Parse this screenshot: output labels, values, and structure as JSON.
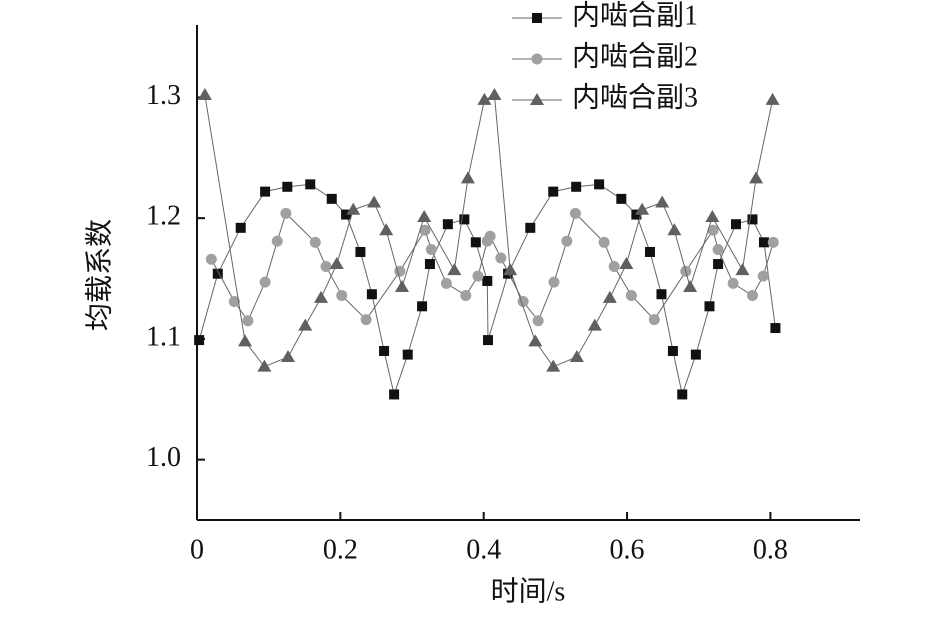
{
  "chart_data": {
    "type": "line",
    "x_label": "时间/s",
    "y_label": "均载系数",
    "xlim": [
      0,
      0.925
    ],
    "ylim": [
      0.95,
      1.36
    ],
    "xticks": [
      0,
      0.2,
      0.4,
      0.6,
      0.8
    ],
    "yticks": [
      {
        "value": 1,
        "label": "1.0"
      },
      1.1,
      1.2,
      1.3
    ],
    "legend": "top-right",
    "series": [
      {
        "name": "内啮合副1",
        "color": "#111111",
        "marker": "square",
        "x": [
          0.003,
          0.029,
          0.061,
          0.095,
          0.126,
          0.158,
          0.188,
          0.208,
          0.228,
          0.244,
          0.261,
          0.275,
          0.294,
          0.314,
          0.325,
          0.35,
          0.373,
          0.389,
          0.405,
          0.406,
          0.434,
          0.465,
          0.497,
          0.529,
          0.561,
          0.592,
          0.613,
          0.632,
          0.648,
          0.664,
          0.677,
          0.696,
          0.715,
          0.727,
          0.752,
          0.775,
          0.791,
          0.807
        ],
        "values": [
          1.099,
          1.154,
          1.192,
          1.222,
          1.226,
          1.228,
          1.216,
          1.203,
          1.172,
          1.137,
          1.09,
          1.054,
          1.087,
          1.127,
          1.162,
          1.195,
          1.199,
          1.18,
          1.148,
          1.099,
          1.154,
          1.192,
          1.222,
          1.226,
          1.228,
          1.216,
          1.203,
          1.172,
          1.137,
          1.09,
          1.054,
          1.087,
          1.127,
          1.162,
          1.195,
          1.199,
          1.18,
          1.109
        ]
      },
      {
        "name": "内啮合副2",
        "color": "#a0a0a0",
        "marker": "circle",
        "x": [
          0.02,
          0.052,
          0.071,
          0.095,
          0.112,
          0.124,
          0.165,
          0.18,
          0.202,
          0.236,
          0.283,
          0.318,
          0.327,
          0.348,
          0.375,
          0.392,
          0.405,
          0.409,
          0.424,
          0.455,
          0.476,
          0.498,
          0.516,
          0.528,
          0.568,
          0.582,
          0.606,
          0.638,
          0.682,
          0.72,
          0.727,
          0.748,
          0.775,
          0.79,
          0.804
        ],
        "values": [
          1.166,
          1.131,
          1.115,
          1.147,
          1.181,
          1.204,
          1.18,
          1.16,
          1.136,
          1.116,
          1.156,
          1.19,
          1.174,
          1.146,
          1.136,
          1.152,
          1.181,
          1.185,
          1.167,
          1.131,
          1.115,
          1.147,
          1.181,
          1.204,
          1.18,
          1.16,
          1.136,
          1.116,
          1.156,
          1.19,
          1.174,
          1.146,
          1.136,
          1.152,
          1.18
        ]
      },
      {
        "name": "内啮合副3",
        "color": "#606060",
        "marker": "triangle",
        "x": [
          0.011,
          0.067,
          0.094,
          0.127,
          0.151,
          0.173,
          0.195,
          0.218,
          0.247,
          0.264,
          0.286,
          0.317,
          0.359,
          0.378,
          0.401,
          0.415,
          0.437,
          0.472,
          0.497,
          0.53,
          0.555,
          0.576,
          0.599,
          0.621,
          0.649,
          0.666,
          0.688,
          0.719,
          0.761,
          0.78,
          0.803
        ],
        "values": [
          1.302,
          1.098,
          1.077,
          1.085,
          1.111,
          1.134,
          1.162,
          1.207,
          1.213,
          1.19,
          1.143,
          1.201,
          1.157,
          1.233,
          1.298,
          1.302,
          1.157,
          1.098,
          1.077,
          1.085,
          1.111,
          1.134,
          1.162,
          1.207,
          1.213,
          1.19,
          1.143,
          1.201,
          1.157,
          1.233,
          1.298
        ]
      }
    ]
  }
}
